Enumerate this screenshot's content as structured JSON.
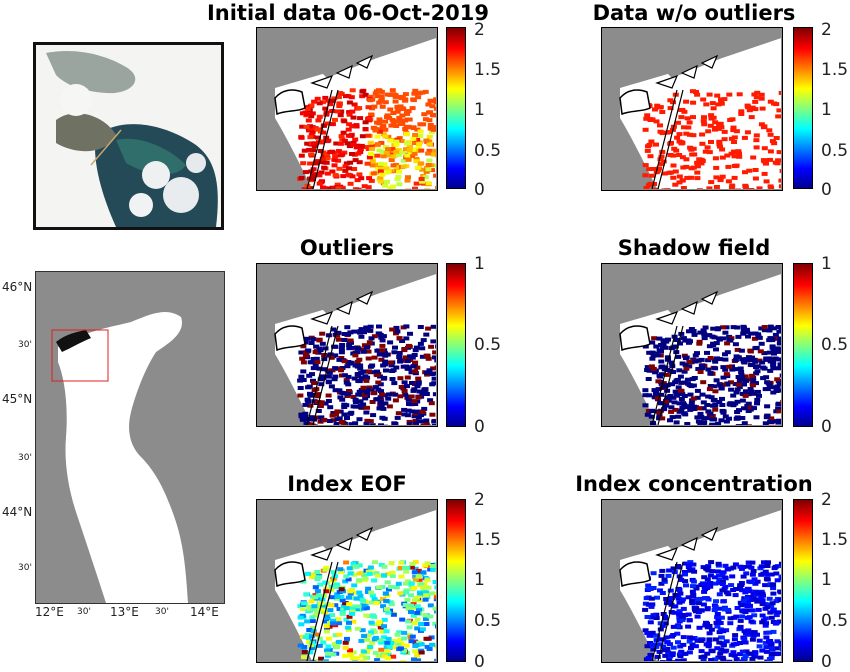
{
  "rgb_image": {
    "description_icon": "true-color-satellite-image"
  },
  "overview_map": {
    "lat_labels": [
      "46°N",
      "30'",
      "45°N",
      "30'",
      "44°N",
      "30'"
    ],
    "lon_labels": [
      "12°E",
      "30'",
      "13°E",
      "30'",
      "14°E"
    ],
    "land_color": "#8c8c8c",
    "sea_color": "#ffffff",
    "box_color": "#e0201c"
  },
  "panels": [
    {
      "title": "Initial data 06-Oct-2019",
      "ticks": [
        "2",
        "1.5",
        "1",
        "0.5",
        "0"
      ],
      "colormap": "jet",
      "clim": [
        0,
        2
      ]
    },
    {
      "title": "Data w/o outliers",
      "ticks": [
        "2",
        "1.5",
        "1",
        "0.5",
        "0"
      ],
      "colormap": "jet",
      "clim": [
        0,
        2
      ]
    },
    {
      "title": "Outliers",
      "ticks": [
        "1",
        "0.5",
        "0"
      ],
      "colormap": "jet",
      "clim": [
        0,
        1
      ]
    },
    {
      "title": "Shadow field",
      "ticks": [
        "1",
        "0.5",
        "0"
      ],
      "colormap": "jet",
      "clim": [
        0,
        1
      ]
    },
    {
      "title": "Index EOF",
      "ticks": [
        "2",
        "1.5",
        "1",
        "0.5",
        "0"
      ],
      "colormap": "jet",
      "clim": [
        0,
        2
      ]
    },
    {
      "title": "Index concentration",
      "ticks": [
        "2",
        "1.5",
        "1",
        "0.5",
        "0"
      ],
      "colormap": "jet",
      "clim": [
        0,
        2
      ]
    }
  ],
  "colors": {
    "land": "#8c8c8c",
    "nodata": "#ffffff",
    "coast": "#000000"
  }
}
